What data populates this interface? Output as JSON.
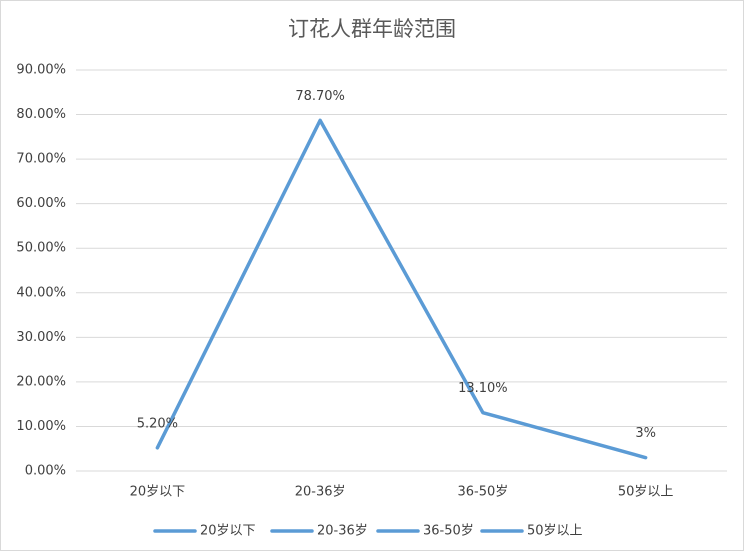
{
  "chart_data": {
    "type": "line",
    "title": "订花人群年龄范围",
    "categories": [
      "20岁以下",
      "20-36岁",
      "36-50岁",
      "50岁以上"
    ],
    "values": [
      5.2,
      78.7,
      13.1,
      3
    ],
    "value_labels": [
      "5.20%",
      "78.70%",
      "13.10%",
      "3%"
    ],
    "color": "#5b9bd5",
    "ylim": [
      0,
      90
    ],
    "yticks": [
      {
        "value": 0,
        "label": "0.00%"
      },
      {
        "value": 10,
        "label": "10.00%"
      },
      {
        "value": 20,
        "label": "20.00%"
      },
      {
        "value": 30,
        "label": "30.00%"
      },
      {
        "value": 40,
        "label": "40.00%"
      },
      {
        "value": 50,
        "label": "50.00%"
      },
      {
        "value": 60,
        "label": "60.00%"
      },
      {
        "value": 70,
        "label": "70.00%"
      },
      {
        "value": 80,
        "label": "80.00%"
      },
      {
        "value": 90,
        "label": "90.00%"
      }
    ],
    "grid": true
  }
}
